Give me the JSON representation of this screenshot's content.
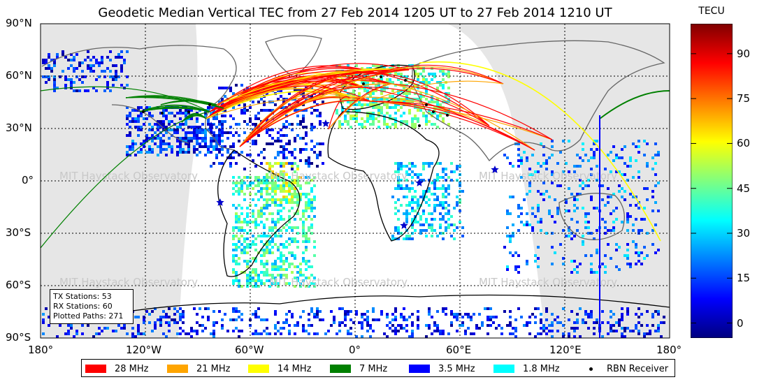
{
  "title": "Geodetic Median Vertical TEC from 27 Feb 2014 1205 UT to 27 Feb 2014 1210 UT",
  "map": {
    "lon_ticks": [
      "180°",
      "120°W",
      "60°W",
      "0°",
      "60°E",
      "120°E",
      "180°"
    ],
    "lat_ticks": [
      "90°N",
      "60°N",
      "30°N",
      "0°",
      "30°S",
      "60°S",
      "90°S"
    ],
    "watermark": "MIT Haystack Observatory",
    "night_color": "#e6e6e6",
    "day_color": "#ffffff"
  },
  "stats": {
    "tx": "TX Stations: 53",
    "rx": "RX Stations: 60",
    "paths": "Plotted Paths: 271"
  },
  "colorbar": {
    "label": "TECU",
    "ticks": [
      "90",
      "75",
      "60",
      "45",
      "30",
      "15",
      "0"
    ],
    "tick_values": [
      90,
      75,
      60,
      45,
      30,
      15,
      0
    ],
    "range": [
      -5,
      100
    ],
    "colormap": "jet"
  },
  "legend": [
    {
      "label": "28 MHz",
      "color": "#ff0000",
      "kind": "swatch"
    },
    {
      "label": "21 MHz",
      "color": "#ffa500",
      "kind": "swatch"
    },
    {
      "label": "14 MHz",
      "color": "#ffff00",
      "kind": "swatch"
    },
    {
      "label": "7 MHz",
      "color": "#008000",
      "kind": "swatch"
    },
    {
      "label": "3.5 MHz",
      "color": "#0000ff",
      "kind": "swatch"
    },
    {
      "label": "1.8 MHz",
      "color": "#00ffff",
      "kind": "swatch"
    },
    {
      "label": "RBN Receiver",
      "color": "#000000",
      "kind": "dot"
    }
  ]
}
